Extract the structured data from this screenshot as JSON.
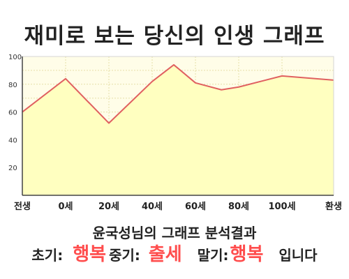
{
  "chart_data": {
    "type": "area",
    "title": "재미로 보는 당신의 인생 그래프",
    "x_labels": [
      "전생",
      "0세",
      "20세",
      "40세",
      "60세",
      "80세",
      "100세",
      "환생"
    ],
    "points": [
      {
        "x": "전생",
        "y": 60
      },
      {
        "x": "0세",
        "y": 84
      },
      {
        "x": "20세",
        "y": 52
      },
      {
        "x": "40세",
        "y": 82
      },
      {
        "x": "50세",
        "y": 94
      },
      {
        "x": "60세",
        "y": 81
      },
      {
        "x": "72세",
        "y": 76
      },
      {
        "x": "80세",
        "y": 78
      },
      {
        "x": "100세",
        "y": 86
      },
      {
        "x": "환생",
        "y": 83
      }
    ],
    "y_ticks": [
      "20",
      "40",
      "60",
      "80",
      "100"
    ],
    "ylim": [
      0,
      100
    ],
    "grid": true,
    "line_color": "#e06060",
    "fill_color": "#ffffc0",
    "bg_color": "#fffde8"
  },
  "summary": {
    "title": "윤국성님의 그래프 분석결과",
    "early_label": "초기:",
    "early_value": "행복",
    "mid_label": "중기:",
    "mid_value": "출세",
    "late_label": "말기:",
    "late_value": "행복",
    "suffix": "입니다"
  },
  "colors": {
    "accent": "#ff4d4d",
    "text": "#222222"
  }
}
